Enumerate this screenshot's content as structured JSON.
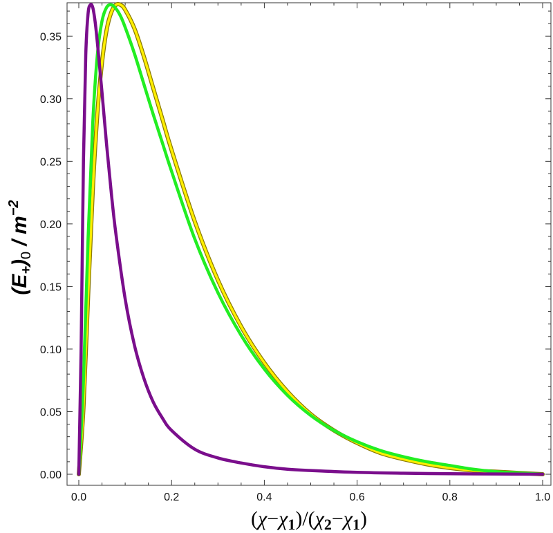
{
  "chart_data": {
    "type": "line",
    "title": "",
    "xlabel_parts": {
      "open": "(",
      "chi": "χ",
      "minus": "−",
      "chi1": "χ",
      "one": "1",
      "close_slash": ")/(",
      "chi2": "χ",
      "two": "2",
      "minus2": "−",
      "chi1b": "χ",
      "oneb": "1",
      "close": ")"
    },
    "ylabel_parts": {
      "open": "(",
      "E": "E",
      "plus": "+",
      "close": ")",
      "zero": "0",
      "slash": " / ",
      "m": "m",
      "exp": "−2"
    },
    "xlim": [
      0,
      1
    ],
    "ylim": [
      0,
      0.375
    ],
    "xticks": [
      0.0,
      0.2,
      0.4,
      0.6,
      0.8,
      1.0
    ],
    "xtick_labels": [
      "0.0",
      "0.2",
      "0.4",
      "0.6",
      "0.8",
      "1.0"
    ],
    "yticks": [
      0.0,
      0.05,
      0.1,
      0.15,
      0.2,
      0.25,
      0.3,
      0.35
    ],
    "ytick_labels": [
      "0.00",
      "0.05",
      "0.10",
      "0.15",
      "0.20",
      "0.25",
      "0.30",
      "0.35"
    ],
    "grid": false,
    "legend": "none",
    "series": [
      {
        "color": "#FFEE00",
        "outline": "#8A7A00",
        "x": [
          0,
          0.01,
          0.02,
          0.03,
          0.04,
          0.05,
          0.06,
          0.07,
          0.08,
          0.09,
          0.1,
          0.12,
          0.14,
          0.16,
          0.18,
          0.2,
          0.25,
          0.3,
          0.35,
          0.4,
          0.45,
          0.5,
          0.55,
          0.6,
          0.65,
          0.7,
          0.75,
          0.8,
          0.85,
          0.9,
          0.95,
          1.0
        ],
        "y": [
          0,
          0.053,
          0.142,
          0.226,
          0.288,
          0.329,
          0.355,
          0.369,
          0.375,
          0.375,
          0.371,
          0.356,
          0.334,
          0.309,
          0.284,
          0.259,
          0.202,
          0.155,
          0.118,
          0.089,
          0.066,
          0.048,
          0.035,
          0.025,
          0.017,
          0.012,
          0.008,
          0.005,
          0.003,
          0.002,
          0.001,
          0.0
        ]
      },
      {
        "color": "#22EE22",
        "x": [
          0,
          0.01,
          0.02,
          0.03,
          0.04,
          0.05,
          0.06,
          0.07,
          0.08,
          0.09,
          0.1,
          0.12,
          0.14,
          0.16,
          0.18,
          0.2,
          0.25,
          0.3,
          0.35,
          0.4,
          0.45,
          0.5,
          0.55,
          0.6,
          0.65,
          0.7,
          0.75,
          0.8,
          0.85,
          0.9,
          0.95,
          1.0
        ],
        "y": [
          0,
          0.075,
          0.188,
          0.28,
          0.335,
          0.362,
          0.373,
          0.375,
          0.372,
          0.366,
          0.357,
          0.336,
          0.312,
          0.288,
          0.265,
          0.242,
          0.188,
          0.145,
          0.111,
          0.084,
          0.063,
          0.047,
          0.035,
          0.026,
          0.019,
          0.014,
          0.01,
          0.007,
          0.004,
          0.002,
          0.001,
          0.0
        ]
      },
      {
        "color": "#7A0E8C",
        "x": [
          0,
          0.005,
          0.01,
          0.015,
          0.02,
          0.025,
          0.03,
          0.035,
          0.04,
          0.05,
          0.06,
          0.07,
          0.08,
          0.1,
          0.12,
          0.14,
          0.16,
          0.18,
          0.2,
          0.25,
          0.3,
          0.35,
          0.4,
          0.45,
          0.5,
          0.6,
          0.7,
          0.8,
          0.9,
          1.0
        ],
        "y": [
          0,
          0.1,
          0.25,
          0.335,
          0.368,
          0.375,
          0.373,
          0.362,
          0.345,
          0.305,
          0.263,
          0.225,
          0.192,
          0.14,
          0.103,
          0.077,
          0.058,
          0.045,
          0.035,
          0.02,
          0.013,
          0.009,
          0.006,
          0.004,
          0.003,
          0.0015,
          0.0008,
          0.0004,
          0.0002,
          0.0
        ]
      }
    ]
  }
}
